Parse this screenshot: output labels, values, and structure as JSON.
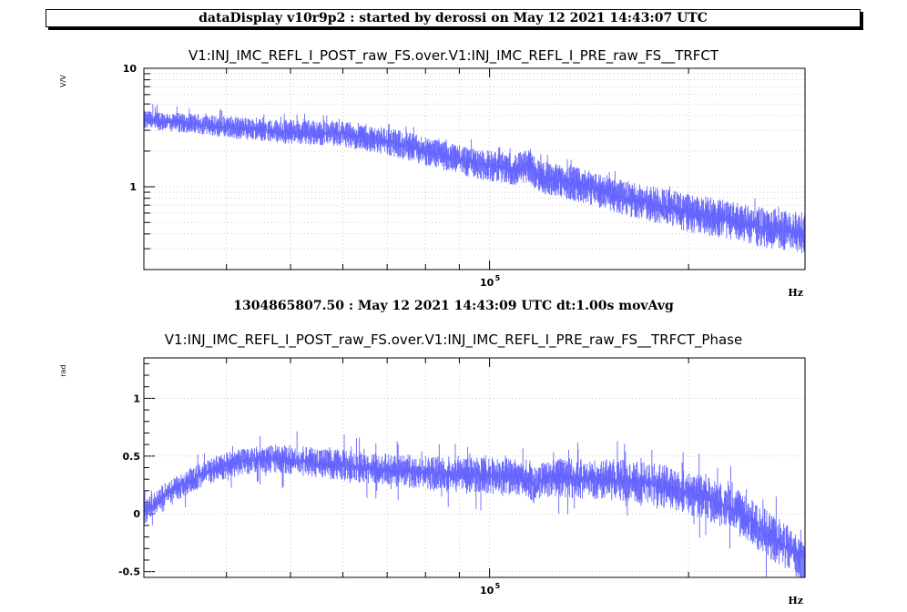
{
  "header": {
    "title": "dataDisplay v10r9p2 : started by derossi on May 12 2021 14:43:07 UTC"
  },
  "mid_label": "1304865807.50 : May 12 2021 14:43:09 UTC dt:1.00s movAvg",
  "colors": {
    "trace": "#6666ff",
    "grid": "#aaaaaa",
    "axis": "#000000"
  },
  "chart_data": [
    {
      "type": "line",
      "title": "V1:INJ_IMC_REFL_I_POST_raw_FS.over.V1:INJ_IMC_REFL_I_PRE_raw_FS__TRFCT",
      "xlabel": "Hz",
      "ylabel": "V/V",
      "xscale": "log",
      "yscale": "log",
      "xlim": [
        30000,
        300000
      ],
      "ylim": [
        0.2,
        10
      ],
      "x_tick_labels": [
        "10^5"
      ],
      "y_tick_labels": [
        "10",
        "1"
      ],
      "grid": true,
      "series": [
        {
          "x": [
            30000,
            35000,
            40000,
            45000,
            50000,
            55000,
            60000,
            65000,
            70000,
            75000,
            80000,
            85000,
            90000,
            95000,
            100000,
            105000,
            110000,
            115000,
            118000,
            120000,
            125000,
            130000,
            140000,
            150000,
            160000,
            170000,
            180000,
            190000,
            200000,
            220000,
            240000,
            260000,
            280000,
            300000
          ],
          "y": [
            3.7,
            3.4,
            3.2,
            3.0,
            2.9,
            2.85,
            2.8,
            2.6,
            2.4,
            2.2,
            2.0,
            1.85,
            1.7,
            1.6,
            1.5,
            1.45,
            1.4,
            1.5,
            1.25,
            1.2,
            1.15,
            1.1,
            1.0,
            0.9,
            0.8,
            0.75,
            0.7,
            0.65,
            0.6,
            0.55,
            0.5,
            0.45,
            0.42,
            0.4
          ],
          "spread_factor": 1.2
        }
      ]
    },
    {
      "type": "line",
      "title": "V1:INJ_IMC_REFL_I_POST_raw_FS.over.V1:INJ_IMC_REFL_I_PRE_raw_FS__TRFCT_Phase",
      "xlabel": "Hz",
      "ylabel": "rad",
      "xscale": "log",
      "yscale": "linear",
      "xlim": [
        30000,
        300000
      ],
      "ylim": [
        -0.55,
        1.35
      ],
      "x_tick_labels": [
        "10^5"
      ],
      "y_tick_labels": [
        "1",
        "0.5",
        "0",
        "-0.5"
      ],
      "yticks": [
        1,
        0.5,
        0,
        -0.5
      ],
      "grid": true,
      "series": [
        {
          "x": [
            30000,
            32000,
            35000,
            38000,
            42000,
            46000,
            50000,
            55000,
            60000,
            65000,
            70000,
            80000,
            90000,
            100000,
            110000,
            115000,
            118000,
            120000,
            125000,
            130000,
            140000,
            150000,
            160000,
            170000,
            180000,
            190000,
            200000,
            220000,
            240000,
            260000,
            280000,
            300000
          ],
          "y": [
            0.0,
            0.15,
            0.28,
            0.38,
            0.45,
            0.48,
            0.47,
            0.44,
            0.42,
            0.4,
            0.38,
            0.36,
            0.34,
            0.33,
            0.32,
            0.3,
            0.22,
            0.3,
            0.32,
            0.31,
            0.3,
            0.3,
            0.29,
            0.27,
            0.25,
            0.22,
            0.18,
            0.1,
            0.0,
            -0.15,
            -0.28,
            -0.38
          ],
          "spread": 0.13
        }
      ]
    }
  ]
}
